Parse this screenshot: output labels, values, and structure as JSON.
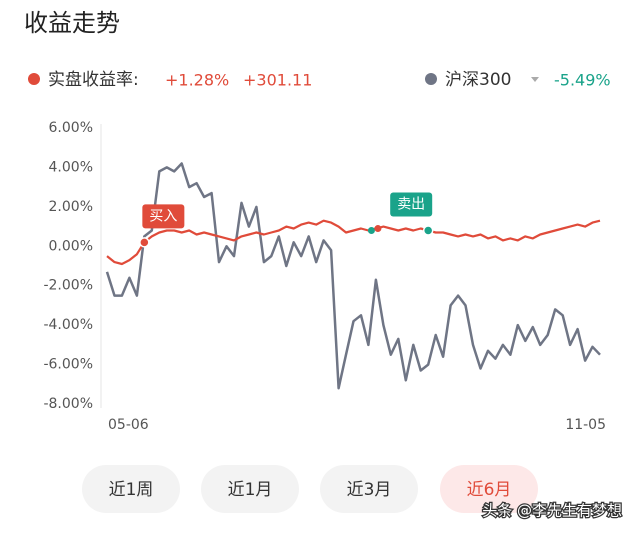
{
  "title": "收益走势",
  "chart_data": {
    "type": "line",
    "categories": [
      "05-06",
      null,
      null,
      null,
      null,
      null,
      null,
      null,
      null,
      null,
      null,
      null,
      null,
      null,
      null,
      null,
      null,
      null,
      null,
      null,
      null,
      null,
      null,
      null,
      null,
      null,
      null,
      null,
      null,
      null,
      null,
      null,
      null,
      null,
      null,
      null,
      null,
      null,
      null,
      null,
      null,
      null,
      null,
      null,
      null,
      null,
      null,
      null,
      null,
      null,
      null,
      null,
      null,
      null,
      null,
      null,
      null,
      null,
      null,
      null,
      null,
      null,
      null,
      null,
      null,
      null,
      "11-05"
    ],
    "series": [
      {
        "name": "实盘收益率:",
        "color": "#e04b3a",
        "summary": [
          "+1.28%",
          "+301.11"
        ],
        "values": [
          -0.5,
          -0.8,
          -0.9,
          -0.7,
          -0.4,
          0.2,
          0.5,
          0.7,
          0.8,
          0.8,
          0.7,
          0.8,
          0.6,
          0.7,
          0.6,
          0.5,
          0.4,
          0.3,
          0.5,
          0.6,
          0.7,
          0.6,
          0.7,
          0.8,
          1.0,
          0.9,
          1.1,
          1.2,
          1.1,
          1.3,
          1.2,
          1.0,
          0.7,
          0.8,
          0.9,
          0.8,
          0.9,
          1.0,
          0.9,
          0.8,
          0.9,
          0.8,
          0.9,
          0.8,
          0.7,
          0.7,
          0.6,
          0.5,
          0.6,
          0.5,
          0.6,
          0.4,
          0.5,
          0.3,
          0.4,
          0.3,
          0.5,
          0.4,
          0.6,
          0.7,
          0.8,
          0.9,
          1.0,
          1.1,
          1.0,
          1.2,
          1.3
        ]
      },
      {
        "name": "沪深300",
        "color": "#6f7585",
        "summary": [
          "-5.49%"
        ],
        "values": [
          -1.3,
          -2.5,
          -2.5,
          -1.6,
          -2.5,
          0.5,
          0.8,
          3.8,
          4.0,
          3.8,
          4.2,
          3.0,
          3.2,
          2.5,
          2.7,
          -0.8,
          0,
          -0.5,
          2.2,
          1.0,
          2.0,
          -0.8,
          -0.5,
          0.5,
          -1.0,
          0.2,
          -0.5,
          0.5,
          -0.8,
          0.3,
          -0.2,
          -7.2,
          -5.5,
          -3.8,
          -3.5,
          -5.0,
          -1.7,
          -4.0,
          -5.5,
          -4.7,
          -6.8,
          -5.0,
          -6.3,
          -6.0,
          -4.5,
          -5.6,
          -3.0,
          -2.5,
          -3.0,
          -5.0,
          -6.2,
          -5.3,
          -5.7,
          -5.0,
          -5.5,
          -4.0,
          -4.8,
          -4.1,
          -5.0,
          -4.5,
          -3.2,
          -3.5,
          -5.0,
          -4.2,
          -5.8,
          -5.1,
          -5.5
        ]
      }
    ],
    "ylim": [
      -8,
      6
    ],
    "yticks": [
      {
        "value": 6,
        "label": "6.00%"
      },
      {
        "value": 4,
        "label": "4.00%"
      },
      {
        "value": 2,
        "label": "2.00%"
      },
      {
        "value": 0,
        "label": "0.00%"
      },
      {
        "value": -2,
        "label": "-2.00%"
      },
      {
        "value": -4,
        "label": "-4.00%"
      },
      {
        "value": -6,
        "label": "-6.00%"
      },
      {
        "value": -8,
        "label": "-8.00%"
      }
    ],
    "grid": false,
    "annotations": [
      {
        "text": "买入",
        "color": "#e04b3a"
      },
      {
        "text": "卖出",
        "color": "#1aa38a"
      }
    ]
  },
  "buttons": [
    "近1周",
    "近1月",
    "近3月",
    "近6月"
  ],
  "watermark": "头条 @李先生有梦想"
}
